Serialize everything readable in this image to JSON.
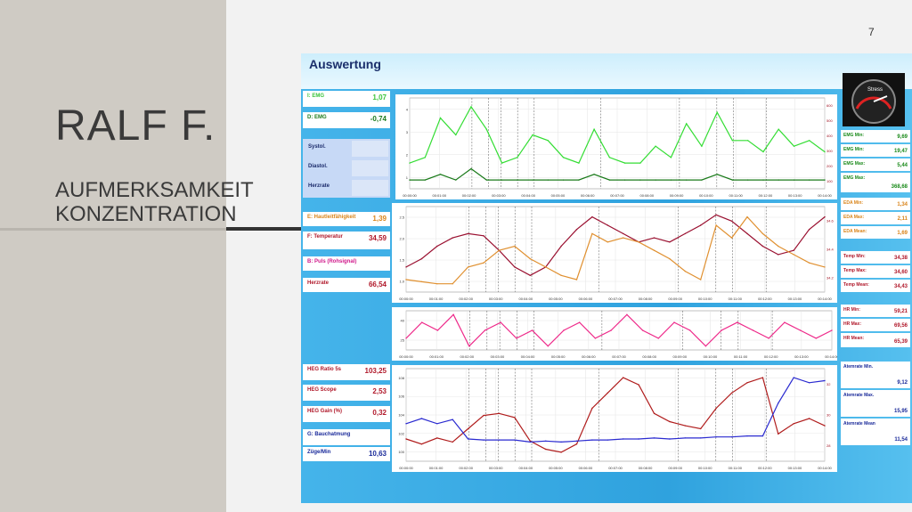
{
  "slide": {
    "page_number": "7",
    "title": "RALF F.",
    "subtitle_line1": "AUFMERKSAMKEIT",
    "subtitle_line2": "KONZENTRATION"
  },
  "panel": {
    "title": "Auswertung",
    "gauge_label": "Stress",
    "left_boxes": [
      {
        "label": "I: EMG",
        "value": "1,07",
        "color": "#3cc43c"
      },
      {
        "label": "D: EMG",
        "value": "-0,74",
        "color": "#1a7a1a"
      },
      {
        "label": "E: Hautleitfähigkeit",
        "value": "1,39",
        "color": "#d9841a"
      },
      {
        "label": "F: Temperatur",
        "value": "34,59",
        "color": "#b0182a"
      },
      {
        "label": "B: Puls (Rohsignal)",
        "value": "",
        "color": "#d0188a"
      },
      {
        "label": "Herzrate",
        "value": "66,54",
        "color": "#b0182a"
      },
      {
        "label": "HEG Ratio 5s",
        "value": "103,25",
        "color": "#b0182a"
      },
      {
        "label": "HEG Scope",
        "value": "2,53",
        "color": "#b0182a"
      },
      {
        "label": "HEG Gain (%)",
        "value": "0,32",
        "color": "#b0182a"
      },
      {
        "label": "G: Bauchatmung",
        "value": "",
        "color": "#1a2a9a"
      },
      {
        "label": "Züge/Min",
        "value": "10,63",
        "color": "#1a2a9a"
      }
    ],
    "bp_rows": [
      "Systol.",
      "Diastol.",
      "Herzrate"
    ],
    "right_boxes": [
      {
        "label": "EMG Min:",
        "value": "9,69",
        "color": "#1a8a1a"
      },
      {
        "label": "EMG Min:",
        "value": "19,47",
        "color": "#1a8a1a"
      },
      {
        "label": "EMG Max:",
        "value": "5,44",
        "color": "#1a8a1a"
      },
      {
        "label": "EMG Max:",
        "value": "368,68",
        "color": "#1a8a1a"
      },
      {
        "label": "EDA Min:",
        "value": "1,34",
        "color": "#d9841a"
      },
      {
        "label": "EDA Max:",
        "value": "2,11",
        "color": "#d9841a"
      },
      {
        "label": "EDA Mean:",
        "value": "1,69",
        "color": "#d9841a"
      },
      {
        "label": "Temp Min:",
        "value": "34,38",
        "color": "#b0182a"
      },
      {
        "label": "Temp Max:",
        "value": "34,60",
        "color": "#b0182a"
      },
      {
        "label": "Temp Mean:",
        "value": "34,43",
        "color": "#b0182a"
      },
      {
        "label": "HR Min:",
        "value": "59,21",
        "color": "#b0182a"
      },
      {
        "label": "HR Max:",
        "value": "69,56",
        "color": "#b0182a"
      },
      {
        "label": "HR Mean:",
        "value": "65,39",
        "color": "#b0182a"
      },
      {
        "label": "Atemrate Min.",
        "value": "9,12",
        "color": "#1a2a9a"
      },
      {
        "label": "Atemrate Max.",
        "value": "15,95",
        "color": "#1a2a9a"
      },
      {
        "label": "Atemrate Mean",
        "value": "11,54",
        "color": "#1a2a9a"
      }
    ]
  },
  "chart_data": [
    {
      "type": "line",
      "x_ticks": [
        "00:00:00",
        "00:01:00",
        "00:02:00",
        "00:03:00",
        "00:04:00",
        "00:05:00",
        "00:06:00",
        "00:07:00",
        "00:08:00",
        "00:09:00",
        "00:10:00",
        "00:11:00",
        "00:12:00",
        "00:13:00",
        "00:14:00"
      ],
      "y_left_ticks": [
        "1",
        "2",
        "3",
        "4"
      ],
      "y_right_ticks": [
        "100",
        "200",
        "300",
        "400",
        "500",
        "600"
      ],
      "series": [
        {
          "color": "#33dd33",
          "values": [
            0.5,
            0.6,
            1.3,
            1.0,
            1.5,
            1.1,
            0.5,
            0.6,
            1.0,
            0.9,
            0.6,
            0.5,
            1.1,
            0.6,
            0.5,
            0.5,
            0.8,
            0.6,
            1.2,
            0.8,
            1.4,
            0.9,
            0.9,
            0.7,
            1.1,
            0.8,
            0.9,
            0.7
          ]
        },
        {
          "color": "#1a7a1a",
          "values": [
            0.2,
            0.2,
            0.3,
            0.2,
            0.4,
            0.2,
            0.2,
            0.2,
            0.2,
            0.2,
            0.2,
            0.2,
            0.3,
            0.2,
            0.2,
            0.2,
            0.2,
            0.2,
            0.2,
            0.2,
            0.3,
            0.2,
            0.2,
            0.2,
            0.2,
            0.2,
            0.2,
            0.2
          ]
        }
      ]
    },
    {
      "type": "line",
      "x_ticks": [
        "00:00:00",
        "00:01:00",
        "00:02:00",
        "00:03:00",
        "00:04:00",
        "00:05:00",
        "00:06:00",
        "00:07:00",
        "00:08:00",
        "00:09:00",
        "00:10:00",
        "00:11:00",
        "00:12:00",
        "00:13:00",
        "00:14:00"
      ],
      "y_left_ticks": [
        "1.0",
        "1.5",
        "2.0",
        "2.5"
      ],
      "y_right_ticks": [
        "34.2",
        "34.4",
        "34.6"
      ],
      "series": [
        {
          "color": "#9a1030",
          "values": [
            1.3,
            1.5,
            1.8,
            2.0,
            2.1,
            2.05,
            1.7,
            1.3,
            1.1,
            1.3,
            1.8,
            2.2,
            2.5,
            2.3,
            2.1,
            1.9,
            2.0,
            1.9,
            2.1,
            2.3,
            2.55,
            2.4,
            2.1,
            1.8,
            1.6,
            1.7,
            2.2,
            2.5
          ]
        },
        {
          "color": "#e09030",
          "values": [
            1.0,
            0.95,
            0.9,
            0.9,
            1.3,
            1.4,
            1.7,
            1.8,
            1.5,
            1.3,
            1.1,
            1.0,
            2.1,
            1.9,
            2.0,
            1.9,
            1.7,
            1.5,
            1.2,
            1.0,
            2.3,
            2.0,
            2.5,
            2.1,
            1.8,
            1.6,
            1.4,
            1.3
          ]
        }
      ]
    },
    {
      "type": "line",
      "x_ticks": [
        "00:00:00",
        "00:01:00",
        "00:02:00",
        "00:03:00",
        "00:04:00",
        "00:05:00",
        "00:06:00",
        "00:07:00",
        "00:08:00",
        "00:09:00",
        "00:10:00",
        "00:11:00",
        "00:12:00",
        "00:13:00",
        "00:14:00"
      ],
      "y_left_ticks": [
        "25",
        "40"
      ],
      "y_right_ticks": [],
      "series": [
        {
          "color": "#ee2a8a",
          "values": [
            32,
            34,
            33,
            35,
            31,
            33,
            34,
            32,
            33,
            31,
            33,
            34,
            32,
            33,
            35,
            33,
            32,
            34,
            33,
            31,
            33,
            34,
            33,
            32,
            34,
            33,
            32,
            33
          ]
        }
      ]
    },
    {
      "type": "line",
      "x_ticks": [
        "00:00:00",
        "00:01:00",
        "00:02:00",
        "00:03:00",
        "00:04:00",
        "00:05:00",
        "00:06:00",
        "00:07:00",
        "00:08:00",
        "00:09:00",
        "00:10:00",
        "00:11:00",
        "00:12:00",
        "00:13:00",
        "00:14:00"
      ],
      "y_left_ticks": [
        "100",
        "102",
        "104",
        "106",
        "108"
      ],
      "y_right_ticks": [
        "28",
        "30",
        "32"
      ],
      "series": [
        {
          "color": "#b01c1c",
          "values": [
            101.5,
            101.0,
            101.6,
            101.2,
            102.5,
            103.8,
            104.0,
            103.6,
            101.3,
            100.5,
            100.2,
            101.0,
            104.5,
            106.0,
            107.5,
            106.8,
            104.0,
            103.2,
            102.8,
            102.5,
            104.5,
            106.0,
            107.0,
            107.5,
            102.0,
            103.0,
            103.5,
            102.8
          ]
        },
        {
          "color": "#2a2ad0",
          "values": [
            103.0,
            103.5,
            103.0,
            103.4,
            101.5,
            101.4,
            101.4,
            101.4,
            101.2,
            101.3,
            101.2,
            101.3,
            101.4,
            101.4,
            101.5,
            101.5,
            101.6,
            101.5,
            101.6,
            101.6,
            101.7,
            101.7,
            101.8,
            101.8,
            105.0,
            107.5,
            107.0,
            107.2
          ]
        }
      ]
    }
  ]
}
